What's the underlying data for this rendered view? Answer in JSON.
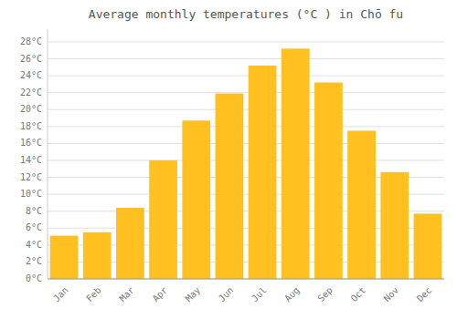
{
  "chart_data": {
    "type": "bar",
    "title": "Average monthly temperatures (°C ) in Chō fu",
    "categories": [
      "Jan",
      "Feb",
      "Mar",
      "Apr",
      "May",
      "Jun",
      "Jul",
      "Aug",
      "Sep",
      "Oct",
      "Nov",
      "Dec"
    ],
    "values": [
      5.1,
      5.5,
      8.4,
      14.0,
      18.7,
      21.9,
      25.2,
      27.2,
      23.2,
      17.5,
      12.6,
      7.7
    ],
    "color": "#FFC020",
    "ylim": [
      0,
      29.5
    ],
    "yticks": [
      {
        "value": 0,
        "label": "0°C"
      },
      {
        "value": 2,
        "label": "2°C"
      },
      {
        "value": 4,
        "label": "4°C"
      },
      {
        "value": 6,
        "label": "6°C"
      },
      {
        "value": 8,
        "label": "8°C"
      },
      {
        "value": 10,
        "label": "10°C"
      },
      {
        "value": 12,
        "label": "12°C"
      },
      {
        "value": 14,
        "label": "14°C"
      },
      {
        "value": 16,
        "label": "16°C"
      },
      {
        "value": 18,
        "label": "18°C"
      },
      {
        "value": 20,
        "label": "20°C"
      },
      {
        "value": 22,
        "label": "22°C"
      },
      {
        "value": 24,
        "label": "24°C"
      },
      {
        "value": 26,
        "label": "26°C"
      },
      {
        "value": 28,
        "label": "28°C"
      }
    ],
    "grid": true
  }
}
